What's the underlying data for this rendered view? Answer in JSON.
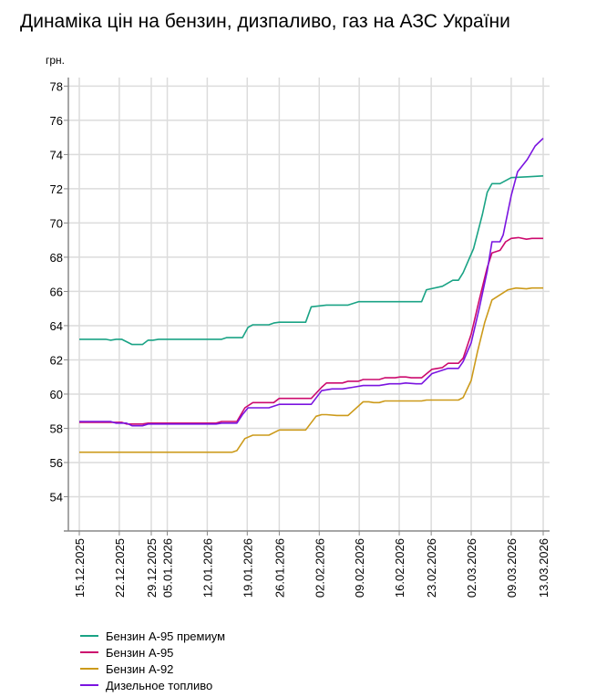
{
  "chart_data": {
    "type": "line",
    "title": "Динаміка цін на бензин, дизпаливо, газ на АЗС України",
    "ylabel": "грн.",
    "xlabel": "",
    "ylim": [
      52,
      78.5
    ],
    "yticks": [
      54,
      56,
      58,
      60,
      62,
      64,
      66,
      68,
      70,
      72,
      74,
      76,
      78
    ],
    "xlim": [
      0,
      58
    ],
    "x_unit": "data point index",
    "xticks": [
      {
        "x": 0,
        "label": "15.12.2025"
      },
      {
        "x": 5,
        "label": "22.12.2025"
      },
      {
        "x": 9,
        "label": "29.12.2025"
      },
      {
        "x": 11,
        "label": "05.01.2026"
      },
      {
        "x": 16,
        "label": "12.01.2026"
      },
      {
        "x": 21,
        "label": "19.01.2026"
      },
      {
        "x": 25,
        "label": "26.01.2026"
      },
      {
        "x": 30,
        "label": "02.02.2026"
      },
      {
        "x": 35,
        "label": "09.02.2026"
      },
      {
        "x": 40,
        "label": "16.02.2026"
      },
      {
        "x": 44,
        "label": "23.02.2026"
      },
      {
        "x": 49,
        "label": "02.03.2026"
      },
      {
        "x": 54,
        "label": "09.03.2026"
      },
      {
        "x": 58,
        "label": "13.03.2026"
      }
    ],
    "grid": true,
    "legend_position": "bottom-left",
    "series": [
      {
        "name": "Бензин А-95 премиум",
        "color": "#1aa385",
        "points": [
          [
            0,
            63.2
          ],
          [
            3.3,
            63.2
          ],
          [
            3.9,
            63.15
          ],
          [
            4.6,
            63.2
          ],
          [
            5.3,
            63.2
          ],
          [
            6.6,
            62.9
          ],
          [
            7.9,
            62.9
          ],
          [
            8.6,
            63.15
          ],
          [
            9.2,
            63.15
          ],
          [
            9.9,
            63.2
          ],
          [
            17.8,
            63.2
          ],
          [
            18.4,
            63.3
          ],
          [
            20.4,
            63.3
          ],
          [
            21.1,
            63.9
          ],
          [
            21.7,
            64.05
          ],
          [
            23.7,
            64.05
          ],
          [
            24.3,
            64.15
          ],
          [
            25.0,
            64.2
          ],
          [
            28.3,
            64.2
          ],
          [
            29.0,
            65.1
          ],
          [
            30.9,
            65.2
          ],
          [
            33.6,
            65.2
          ],
          [
            34.9,
            65.4
          ],
          [
            42.8,
            65.4
          ],
          [
            43.4,
            66.1
          ],
          [
            45.4,
            66.3
          ],
          [
            46.7,
            66.65
          ],
          [
            47.4,
            66.65
          ],
          [
            48.0,
            67.1
          ],
          [
            49.3,
            68.5
          ],
          [
            50.4,
            70.5
          ],
          [
            51.0,
            71.8
          ],
          [
            51.6,
            72.3
          ],
          [
            52.6,
            72.3
          ],
          [
            54.0,
            72.65
          ],
          [
            56,
            72.7
          ],
          [
            58,
            72.75
          ]
        ]
      },
      {
        "name": "Бензин А-95",
        "color": "#cc0a6e",
        "points": [
          [
            0,
            58.35
          ],
          [
            5.3,
            58.35
          ],
          [
            5.9,
            58.25
          ],
          [
            7.9,
            58.25
          ],
          [
            8.6,
            58.3
          ],
          [
            17.1,
            58.3
          ],
          [
            17.8,
            58.4
          ],
          [
            19.7,
            58.4
          ],
          [
            20.7,
            59.2
          ],
          [
            21.7,
            59.5
          ],
          [
            24.3,
            59.5
          ],
          [
            25.0,
            59.75
          ],
          [
            29.0,
            59.75
          ],
          [
            30.3,
            60.4
          ],
          [
            30.9,
            60.65
          ],
          [
            32.9,
            60.65
          ],
          [
            33.6,
            60.75
          ],
          [
            34.9,
            60.75
          ],
          [
            35.5,
            60.85
          ],
          [
            37.5,
            60.85
          ],
          [
            38.2,
            60.95
          ],
          [
            39.5,
            60.95
          ],
          [
            40.1,
            61.0
          ],
          [
            40.8,
            61.0
          ],
          [
            41.5,
            60.95
          ],
          [
            42.8,
            60.95
          ],
          [
            44.1,
            61.45
          ],
          [
            45.4,
            61.55
          ],
          [
            46.1,
            61.8
          ],
          [
            47.4,
            61.8
          ],
          [
            48.0,
            62.1
          ],
          [
            49.0,
            63.5
          ],
          [
            50.0,
            65.5
          ],
          [
            51.0,
            67.4
          ],
          [
            51.6,
            68.25
          ],
          [
            52.6,
            68.4
          ],
          [
            53.3,
            68.9
          ],
          [
            54.0,
            69.1
          ],
          [
            54.9,
            69.15
          ],
          [
            55.9,
            69.05
          ],
          [
            56.6,
            69.1
          ],
          [
            58,
            69.1
          ]
        ]
      },
      {
        "name": "Бензин А-92",
        "color": "#cc9a1a",
        "points": [
          [
            0,
            56.6
          ],
          [
            19.1,
            56.6
          ],
          [
            19.7,
            56.7
          ],
          [
            20.7,
            57.4
          ],
          [
            21.7,
            57.6
          ],
          [
            23.7,
            57.6
          ],
          [
            25.0,
            57.9
          ],
          [
            28.3,
            57.9
          ],
          [
            29.6,
            58.7
          ],
          [
            30.3,
            58.8
          ],
          [
            30.9,
            58.8
          ],
          [
            32.2,
            58.75
          ],
          [
            33.6,
            58.75
          ],
          [
            34.2,
            59.0
          ],
          [
            35.5,
            59.55
          ],
          [
            36.2,
            59.55
          ],
          [
            36.8,
            59.5
          ],
          [
            37.5,
            59.5
          ],
          [
            38.2,
            59.6
          ],
          [
            42.8,
            59.6
          ],
          [
            43.4,
            59.65
          ],
          [
            47.4,
            59.65
          ],
          [
            48.0,
            59.8
          ],
          [
            49.0,
            60.8
          ],
          [
            49.8,
            62.5
          ],
          [
            50.7,
            64.2
          ],
          [
            51.6,
            65.5
          ],
          [
            52.6,
            65.8
          ],
          [
            53.6,
            66.1
          ],
          [
            54.6,
            66.2
          ],
          [
            55.9,
            66.15
          ],
          [
            56.6,
            66.2
          ],
          [
            58,
            66.2
          ]
        ]
      },
      {
        "name": "Дизельное топливо",
        "color": "#7a14e0",
        "points": [
          [
            0,
            58.4
          ],
          [
            3.9,
            58.4
          ],
          [
            4.6,
            58.3
          ],
          [
            5.9,
            58.3
          ],
          [
            6.6,
            58.15
          ],
          [
            7.9,
            58.15
          ],
          [
            8.6,
            58.25
          ],
          [
            17.1,
            58.25
          ],
          [
            17.8,
            58.3
          ],
          [
            19.7,
            58.3
          ],
          [
            20.4,
            58.8
          ],
          [
            21.1,
            59.2
          ],
          [
            23.7,
            59.2
          ],
          [
            25.0,
            59.4
          ],
          [
            29.0,
            59.4
          ],
          [
            30.3,
            60.2
          ],
          [
            31.6,
            60.3
          ],
          [
            32.9,
            60.3
          ],
          [
            34.2,
            60.4
          ],
          [
            35.5,
            60.5
          ],
          [
            37.5,
            60.5
          ],
          [
            38.8,
            60.6
          ],
          [
            40.1,
            60.6
          ],
          [
            40.8,
            60.65
          ],
          [
            42.1,
            60.6
          ],
          [
            42.8,
            60.6
          ],
          [
            44.1,
            61.2
          ],
          [
            46.1,
            61.5
          ],
          [
            47.4,
            61.5
          ],
          [
            48.0,
            61.9
          ],
          [
            49.0,
            63.0
          ],
          [
            50.0,
            65.0
          ],
          [
            51.0,
            67.2
          ],
          [
            51.6,
            68.9
          ],
          [
            52.6,
            68.9
          ],
          [
            53.0,
            69.3
          ],
          [
            54.0,
            71.6
          ],
          [
            54.8,
            73.0
          ],
          [
            56.0,
            73.7
          ],
          [
            57.0,
            74.5
          ],
          [
            58,
            74.95
          ]
        ]
      }
    ]
  }
}
